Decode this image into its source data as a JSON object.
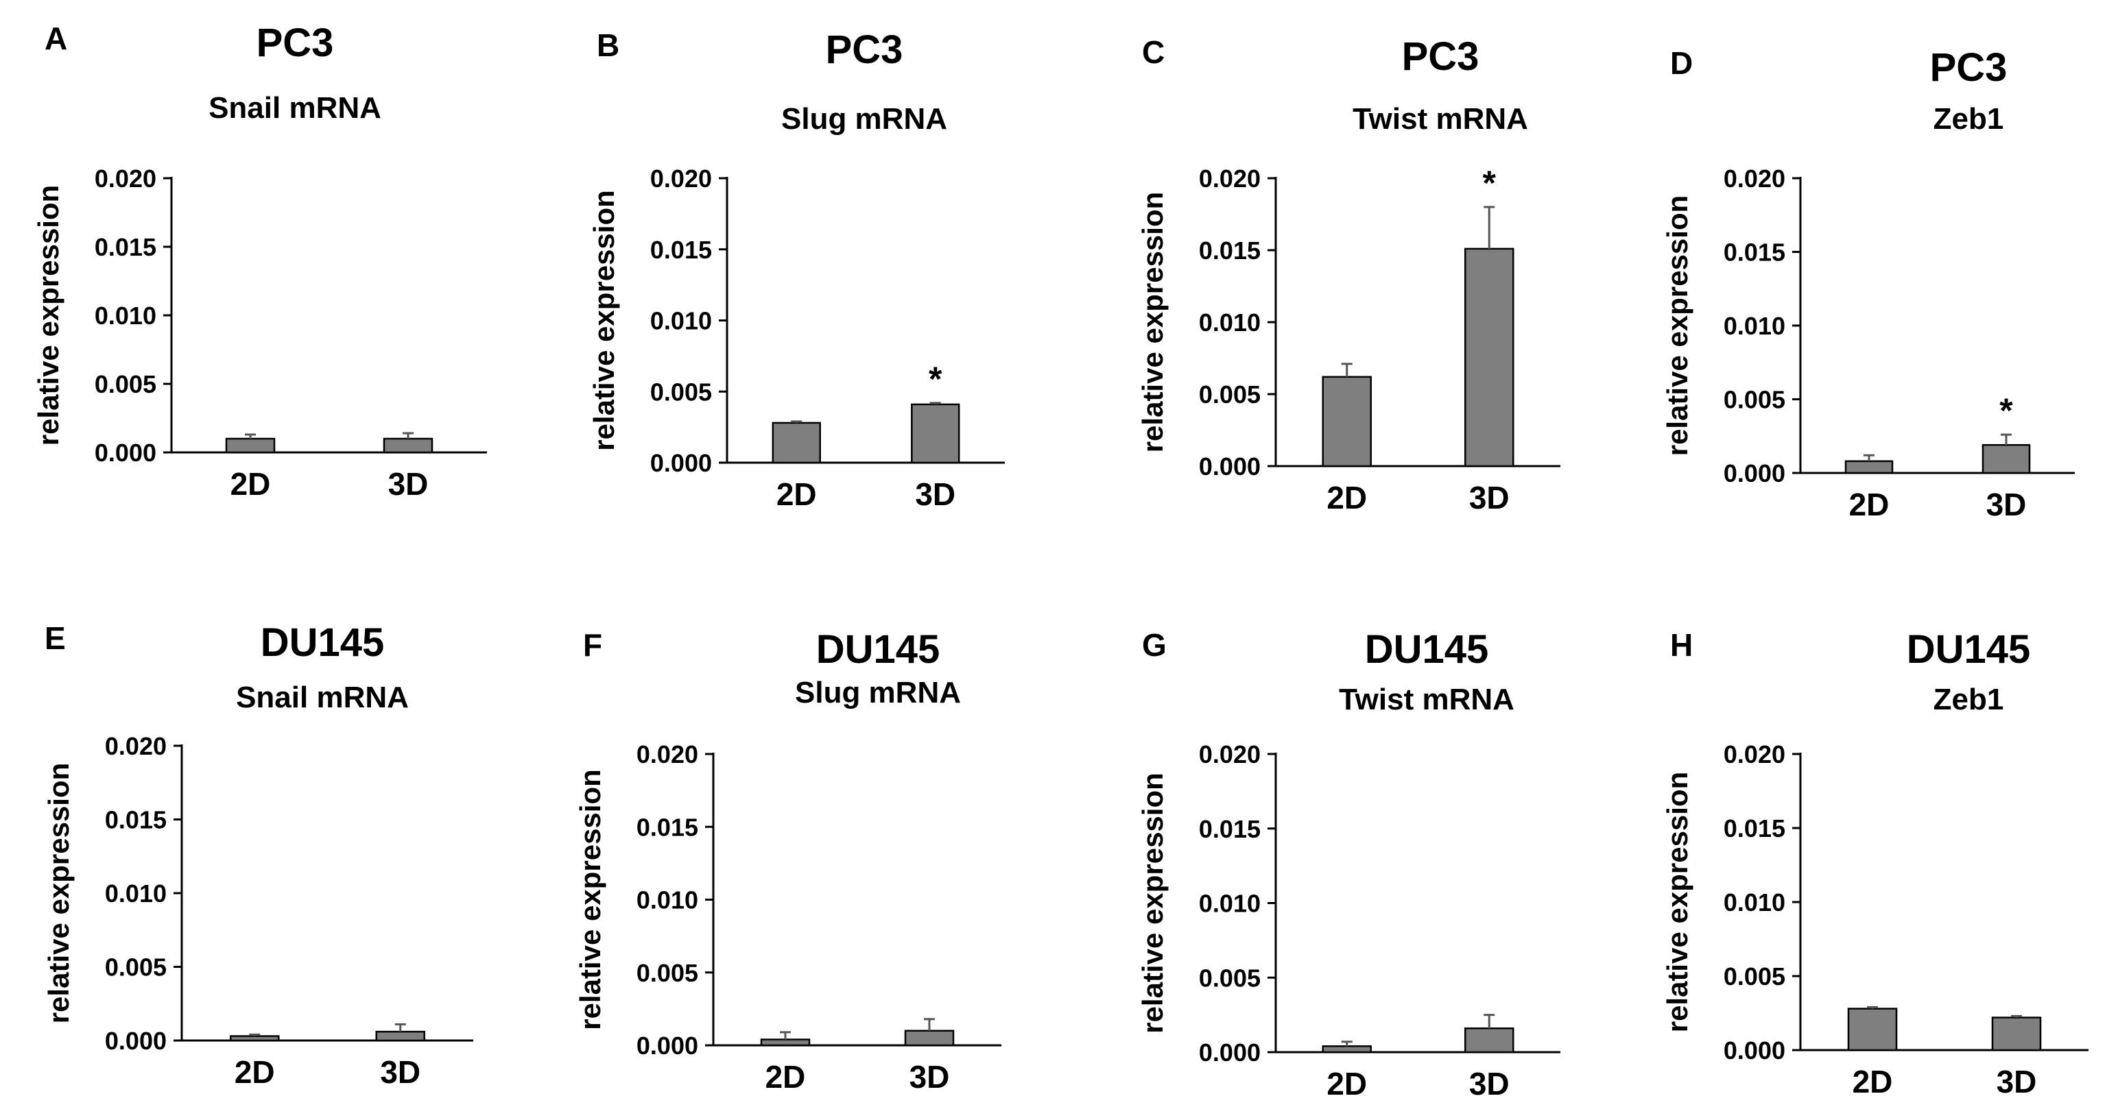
{
  "colors": {
    "bar_fill": "#7f7f7f",
    "bar_stroke": "#000000",
    "axis": "#000000",
    "background": "#ffffff"
  },
  "chart_data": [
    {
      "type": "bar",
      "panel_letter": "A",
      "cell_line": "PC3",
      "title": "Snail mRNA",
      "ylabel": "relative expression",
      "categories": [
        "2D",
        "3D"
      ],
      "values": [
        0.001,
        0.001
      ],
      "errors": [
        0.0003,
        0.0004
      ],
      "significance": [
        "",
        ""
      ],
      "ylim": [
        0,
        0.02
      ],
      "yticks": [
        "0.000",
        "0.005",
        "0.010",
        "0.015",
        "0.020"
      ]
    },
    {
      "type": "bar",
      "panel_letter": "B",
      "cell_line": "PC3",
      "title": "Slug mRNA",
      "ylabel": "relative expression",
      "categories": [
        "2D",
        "3D"
      ],
      "values": [
        0.0028,
        0.0041
      ],
      "errors": [
        0.0001,
        0.0001
      ],
      "significance": [
        "",
        "*"
      ],
      "ylim": [
        0,
        0.02
      ],
      "yticks": [
        "0.000",
        "0.005",
        "0.010",
        "0.015",
        "0.020"
      ]
    },
    {
      "type": "bar",
      "panel_letter": "C",
      "cell_line": "PC3",
      "title": "Twist mRNA",
      "ylabel": "relative expression",
      "categories": [
        "2D",
        "3D"
      ],
      "values": [
        0.0062,
        0.0151
      ],
      "errors": [
        0.0009,
        0.0029
      ],
      "significance": [
        "",
        "*"
      ],
      "ylim": [
        0,
        0.02
      ],
      "yticks": [
        "0.000",
        "0.005",
        "0.010",
        "0.015",
        "0.020"
      ]
    },
    {
      "type": "bar",
      "panel_letter": "D",
      "cell_line": "PC3",
      "title": "Zeb1",
      "ylabel": "relative expression",
      "categories": [
        "2D",
        "3D"
      ],
      "values": [
        0.0008,
        0.0019
      ],
      "errors": [
        0.0004,
        0.0007
      ],
      "significance": [
        "",
        "*"
      ],
      "ylim": [
        0,
        0.02
      ],
      "yticks": [
        "0.000",
        "0.005",
        "0.010",
        "0.015",
        "0.020"
      ]
    },
    {
      "type": "bar",
      "panel_letter": "E",
      "cell_line": "DU145",
      "title": "Snail mRNA",
      "ylabel": "relative expression",
      "categories": [
        "2D",
        "3D"
      ],
      "values": [
        0.0003,
        0.0006
      ],
      "errors": [
        0.0001,
        0.0005
      ],
      "significance": [
        "",
        ""
      ],
      "ylim": [
        0,
        0.02
      ],
      "yticks": [
        "0.000",
        "0.005",
        "0.010",
        "0.015",
        "0.020"
      ]
    },
    {
      "type": "bar",
      "panel_letter": "F",
      "cell_line": "DU145",
      "title": "Slug mRNA",
      "ylabel": "relative expression",
      "categories": [
        "2D",
        "3D"
      ],
      "values": [
        0.0004,
        0.001
      ],
      "errors": [
        0.0005,
        0.0008
      ],
      "significance": [
        "",
        ""
      ],
      "ylim": [
        0,
        0.02
      ],
      "yticks": [
        "0.000",
        "0.005",
        "0.010",
        "0.015",
        "0.020"
      ]
    },
    {
      "type": "bar",
      "panel_letter": "G",
      "cell_line": "DU145",
      "title": "Twist mRNA",
      "ylabel": "relative expression",
      "categories": [
        "2D",
        "3D"
      ],
      "values": [
        0.0004,
        0.0016
      ],
      "errors": [
        0.0003,
        0.0009
      ],
      "significance": [
        "",
        ""
      ],
      "ylim": [
        0,
        0.02
      ],
      "yticks": [
        "0.000",
        "0.005",
        "0.010",
        "0.015",
        "0.020"
      ]
    },
    {
      "type": "bar",
      "panel_letter": "H",
      "cell_line": "DU145",
      "title": "Zeb1",
      "ylabel": "relative expression",
      "categories": [
        "2D",
        "3D"
      ],
      "values": [
        0.0028,
        0.0022
      ],
      "errors": [
        0.0001,
        0.0001
      ],
      "significance": [
        "",
        ""
      ],
      "ylim": [
        0,
        0.02
      ],
      "yticks": [
        "0.000",
        "0.005",
        "0.010",
        "0.015",
        "0.020"
      ]
    }
  ]
}
